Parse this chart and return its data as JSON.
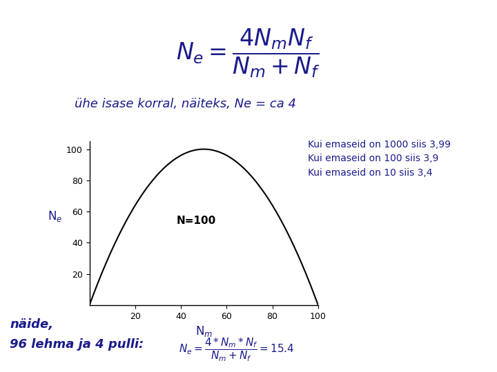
{
  "header_bg": "#808080",
  "header_text_color": "#ffffff",
  "body_bg": "#ffffff",
  "text_color": "#1a1a8c",
  "subtitle": "ühe isase korral, näiteks, Ne = ca 4",
  "info_lines": [
    "Kui emaseid on 1000 siis 3,99",
    "Kui emaseid on 100 siis 3,9",
    "Kui emaseid on 10 siis 3,4"
  ],
  "plot_annotation": "N=100",
  "N_total": 100,
  "x_ticks": [
    20,
    40,
    60,
    80,
    100
  ],
  "y_ticks": [
    20,
    40,
    60,
    80,
    100
  ],
  "bottom_text_line1": "näide,",
  "bottom_text_line2": "96 lehma ja 4 pulli:"
}
